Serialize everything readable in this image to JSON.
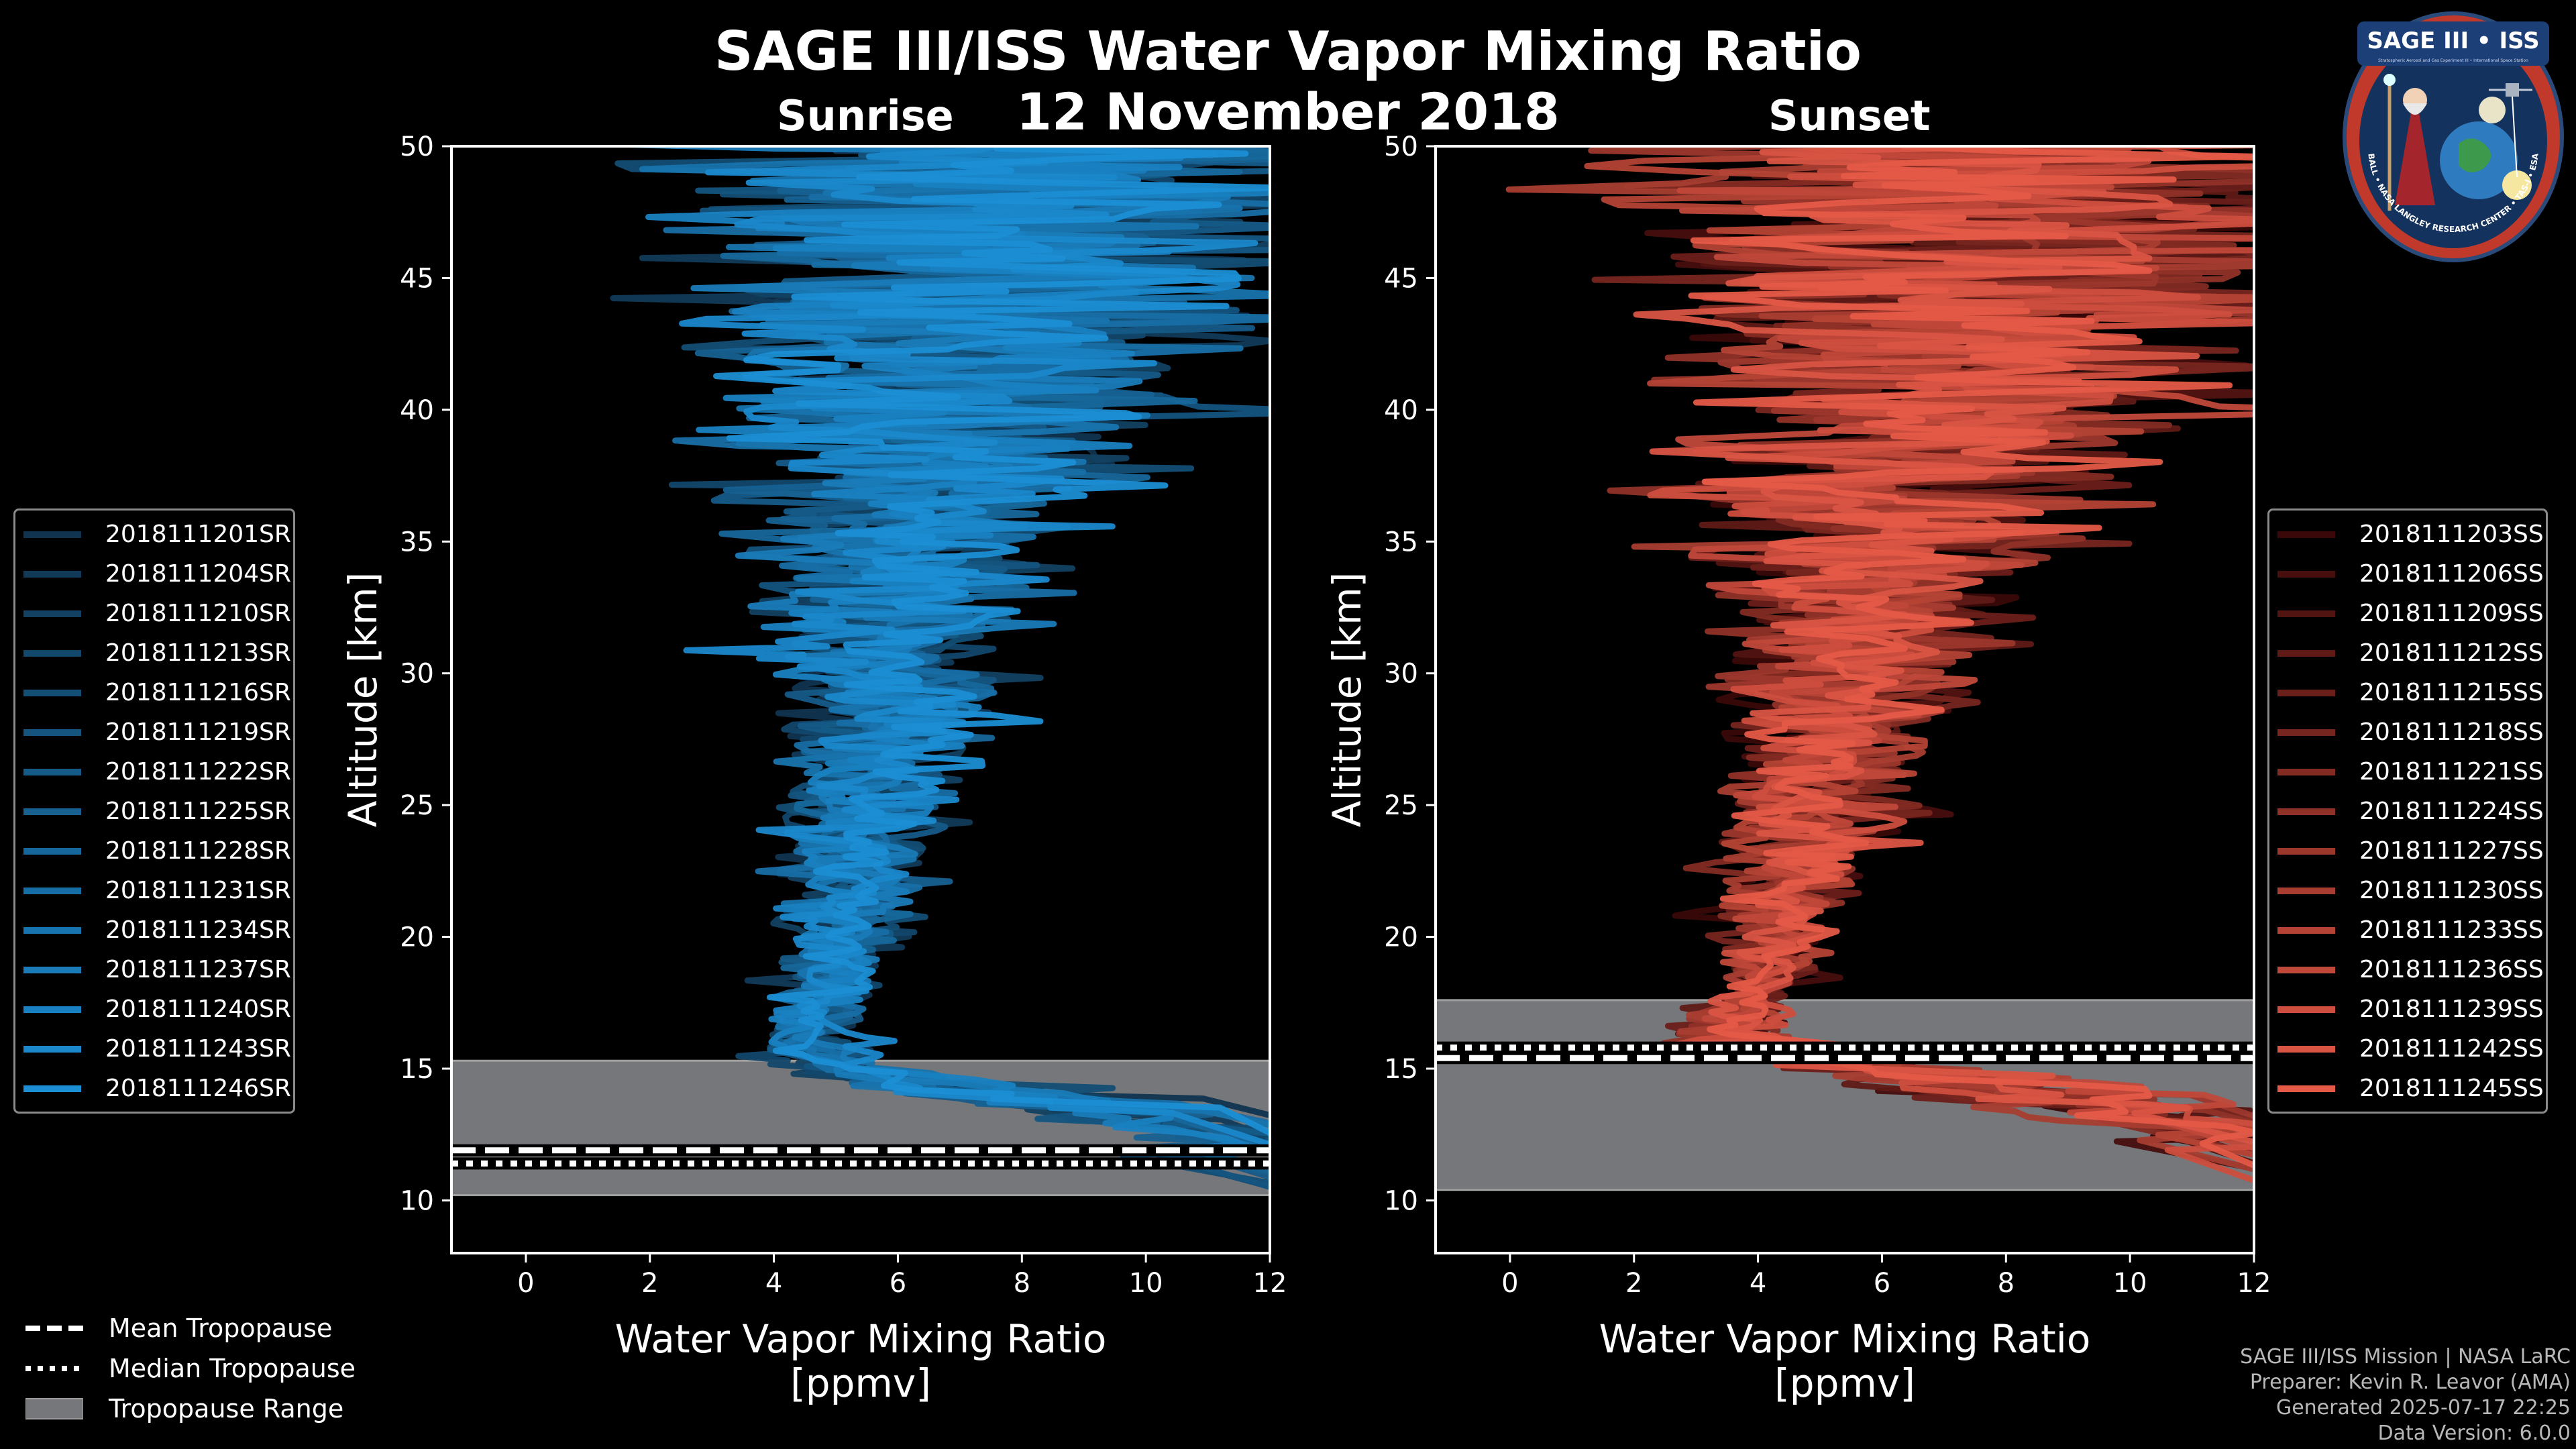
{
  "title": "SAGE III/ISS Water Vapor Mixing Ratio",
  "date": "12 November 2018",
  "left_panel_title": "Sunrise",
  "right_panel_title": "Sunset",
  "colors": {
    "sunrise": "#1b8ed4",
    "sunset": "#e55a47",
    "tropopause_range": "#75777a",
    "background": "#000000"
  },
  "chart_data": [
    {
      "type": "line",
      "panel": "Sunrise",
      "xlabel": "Water Vapor Mixing Ratio\n[ppmv]",
      "xlabel_lines": [
        "Water Vapor Mixing Ratio",
        "[ppmv]"
      ],
      "ylabel": "Altitude [km]",
      "xlim": [
        -1.2,
        12
      ],
      "ylim": [
        8,
        50
      ],
      "xticks": [
        0,
        2,
        4,
        6,
        8,
        10,
        12
      ],
      "yticks": [
        10,
        15,
        20,
        25,
        30,
        35,
        40,
        45,
        50
      ],
      "tropopause": {
        "range": [
          10.2,
          15.3
        ],
        "mean": 11.9,
        "median": 11.4
      },
      "series_count": 15,
      "series": [
        {
          "name": "2018111201SR"
        },
        {
          "name": "2018111204SR"
        },
        {
          "name": "2018111210SR"
        },
        {
          "name": "2018111213SR"
        },
        {
          "name": "2018111216SR"
        },
        {
          "name": "2018111219SR"
        },
        {
          "name": "2018111222SR"
        },
        {
          "name": "2018111225SR"
        },
        {
          "name": "2018111228SR"
        },
        {
          "name": "2018111231SR"
        },
        {
          "name": "2018111234SR"
        },
        {
          "name": "2018111237SR"
        },
        {
          "name": "2018111240SR"
        },
        {
          "name": "2018111243SR"
        },
        {
          "name": "2018111246SR"
        }
      ],
      "profile_shape": {
        "altitudes": [
          12,
          14,
          15,
          16,
          18,
          20,
          22,
          25,
          28,
          30,
          33,
          36,
          38,
          40,
          43,
          45,
          48,
          50
        ],
        "mean_ppmv": [
          12,
          8,
          5.0,
          4.6,
          4.9,
          5.1,
          5.3,
          5.5,
          5.8,
          5.9,
          6.2,
          6.5,
          6.8,
          7.0,
          7.3,
          7.5,
          7.6,
          7.7
        ],
        "spread_ppmv": [
          1.0,
          1.5,
          0.6,
          0.5,
          0.6,
          0.7,
          0.8,
          1.0,
          1.1,
          1.3,
          1.6,
          1.9,
          2.3,
          2.6,
          3.2,
          3.6,
          4.0,
          4.2
        ]
      }
    },
    {
      "type": "line",
      "panel": "Sunset",
      "xlabel": "Water Vapor Mixing Ratio\n[ppmv]",
      "xlabel_lines": [
        "Water Vapor Mixing Ratio",
        "[ppmv]"
      ],
      "ylabel": "Altitude [km]",
      "xlim": [
        -1.2,
        12
      ],
      "ylim": [
        8,
        50
      ],
      "xticks": [
        0,
        2,
        4,
        6,
        8,
        10,
        12
      ],
      "yticks": [
        10,
        15,
        20,
        25,
        30,
        35,
        40,
        45,
        50
      ],
      "tropopause": {
        "range": [
          10.4,
          17.6
        ],
        "mean": 15.4,
        "median": 15.8
      },
      "series_count": 15,
      "series": [
        {
          "name": "2018111203SS"
        },
        {
          "name": "2018111206SS"
        },
        {
          "name": "2018111209SS"
        },
        {
          "name": "2018111212SS"
        },
        {
          "name": "2018111215SS"
        },
        {
          "name": "2018111218SS"
        },
        {
          "name": "2018111221SS"
        },
        {
          "name": "2018111224SS"
        },
        {
          "name": "2018111227SS"
        },
        {
          "name": "2018111230SS"
        },
        {
          "name": "2018111233SS"
        },
        {
          "name": "2018111236SS"
        },
        {
          "name": "2018111239SS"
        },
        {
          "name": "2018111242SS"
        },
        {
          "name": "2018111245SS"
        }
      ],
      "profile_shape": {
        "altitudes": [
          12.5,
          14,
          15,
          16,
          17,
          18,
          20,
          22,
          25,
          28,
          30,
          33,
          36,
          38,
          40,
          43,
          45,
          48,
          50
        ],
        "mean_ppmv": [
          12,
          9,
          6,
          4.0,
          3.8,
          4.0,
          4.3,
          4.6,
          5.0,
          5.4,
          5.6,
          5.9,
          6.3,
          6.6,
          7.0,
          7.4,
          7.6,
          7.8,
          7.9
        ],
        "spread_ppmv": [
          1.0,
          1.6,
          1.6,
          0.9,
          0.6,
          0.5,
          0.6,
          0.8,
          1.1,
          1.3,
          1.5,
          1.8,
          2.2,
          2.6,
          3.0,
          3.6,
          3.9,
          4.2,
          4.4
        ]
      }
    }
  ],
  "bottom_legend": [
    {
      "label": "Mean Tropopause",
      "style": "dashed"
    },
    {
      "label": "Median Tropopause",
      "style": "dotted"
    },
    {
      "label": "Tropopause Range",
      "style": "patch"
    }
  ],
  "credits": [
    "SAGE III/ISS Mission | NASA LaRC",
    "Preparer: Kevin R. Leavor (AMA)",
    "Generated 2025-07-17 22:25",
    "Data Version: 6.0.0"
  ],
  "logo": {
    "title": "SAGE III • ISS",
    "subtitle": "Stratospheric Aerosol and Gas Experiment III • International Space Station",
    "ring_text": "BALL • NASA LANGLEY RESEARCH CENTER • TAS-I • ESA",
    "icon": "wizard-globe-icon"
  }
}
